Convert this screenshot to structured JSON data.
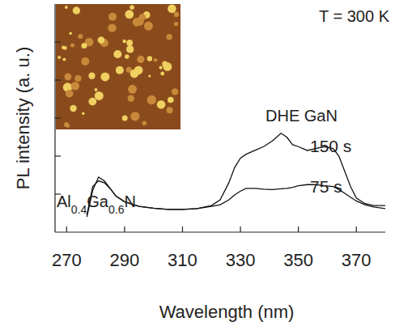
{
  "chart_data": {
    "type": "line",
    "x_label": "Wavelength (nm)",
    "y_label": "PL intensity (a. u.)",
    "annotations": [
      "T = 300 K",
      "Al0.4Ga0.6N",
      "DHE GaN"
    ],
    "x": [
      277,
      279,
      281,
      283,
      285,
      287,
      290,
      295,
      300,
      305,
      310,
      315,
      320,
      323,
      326,
      328,
      330,
      332,
      335,
      338,
      341,
      344,
      346,
      348,
      350,
      353,
      356,
      359,
      362,
      364,
      366,
      368,
      370,
      373,
      376,
      380
    ],
    "series": [
      {
        "name": "150 s",
        "color": "#111111",
        "values": [
          0.4,
          1.1,
          1.45,
          1.35,
          1.15,
          0.95,
          0.8,
          0.68,
          0.63,
          0.6,
          0.6,
          0.62,
          0.7,
          0.85,
          1.3,
          1.7,
          1.95,
          2.05,
          2.15,
          2.25,
          2.4,
          2.6,
          2.5,
          2.3,
          2.25,
          2.15,
          2.2,
          2.25,
          2.2,
          2.0,
          1.6,
          1.2,
          0.9,
          0.75,
          0.7,
          0.7
        ]
      },
      {
        "name": "75 s",
        "color": "#111111",
        "values": [
          0.45,
          1.2,
          1.35,
          1.3,
          1.15,
          0.95,
          0.8,
          0.68,
          0.63,
          0.6,
          0.6,
          0.62,
          0.68,
          0.72,
          0.85,
          0.98,
          1.08,
          1.15,
          1.15,
          1.13,
          1.12,
          1.14,
          1.15,
          1.18,
          1.22,
          1.25,
          1.25,
          1.22,
          1.2,
          1.12,
          1.02,
          0.92,
          0.82,
          0.72,
          0.66,
          0.62
        ]
      }
    ],
    "xlim": [
      266,
      380
    ],
    "ylim": [
      0,
      6
    ],
    "xticks": [
      270,
      290,
      310,
      330,
      350,
      370
    ],
    "yticks": [
      1,
      2,
      3,
      4,
      5
    ],
    "tick_labels": "x",
    "grid": false
  }
}
